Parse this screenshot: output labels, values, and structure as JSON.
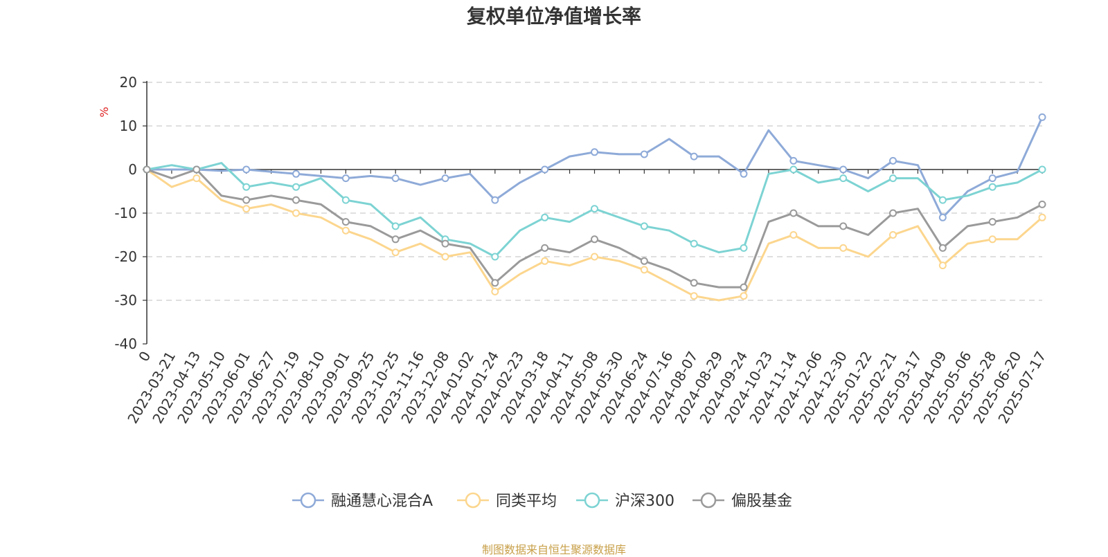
{
  "chart_data": {
    "type": "line",
    "title": "复权单位净值增长率",
    "ylabel": "%",
    "xlabel": "",
    "ylim": [
      -40,
      20
    ],
    "yticks": [
      20,
      10,
      0,
      -10,
      -20,
      -30,
      -40
    ],
    "grid": true,
    "legend_position": "bottom",
    "source_note": "制图数据来自恒生聚源数据库",
    "x_labels": [
      "0",
      "2023-03-21",
      "2023-04-13",
      "2023-05-10",
      "2023-06-01",
      "2023-06-27",
      "2023-07-19",
      "2023-08-10",
      "2023-09-01",
      "2023-09-25",
      "2023-10-25",
      "2023-11-16",
      "2023-12-08",
      "2024-01-02",
      "2024-01-24",
      "2024-02-23",
      "2024-03-18",
      "2024-04-11",
      "2024-05-08",
      "2024-05-30",
      "2024-06-24",
      "2024-07-16",
      "2024-08-07",
      "2024-08-29",
      "2024-09-24",
      "2024-10-23",
      "2024-11-14",
      "2024-12-06",
      "2024-12-30",
      "2025-01-22",
      "2025-02-21",
      "2025-03-17",
      "2025-04-09",
      "2025-05-06",
      "2025-05-28",
      "2025-06-20",
      "2025-07-17"
    ],
    "series": [
      {
        "name": "融通慧心混合A",
        "color": "#8eaad8",
        "values": [
          0,
          0,
          0,
          -0.3,
          0,
          -0.5,
          -1,
          -1.5,
          -2,
          -1.5,
          -2,
          -3.5,
          -2,
          -1,
          -7,
          -3,
          0,
          3,
          4,
          3.5,
          3.5,
          7,
          3,
          3,
          -1,
          9,
          2,
          1,
          0,
          -2,
          2,
          1,
          -11,
          -5,
          -2,
          -0.5,
          12
        ]
      },
      {
        "name": "同类平均",
        "color": "#fcd68e",
        "values": [
          0,
          -4,
          -2,
          -7,
          -9,
          -8,
          -10,
          -11,
          -14,
          -16,
          -19,
          -17,
          -20,
          -19,
          -28,
          -24,
          -21,
          -22,
          -20,
          -21,
          -23,
          -26,
          -29,
          -30,
          -29,
          -17,
          -15,
          -18,
          -18,
          -20,
          -15,
          -13,
          -22,
          -17,
          -16,
          -16,
          -11
        ]
      },
      {
        "name": "沪深300",
        "color": "#7dd3d3",
        "values": [
          0,
          1,
          0,
          1.5,
          -4,
          -3,
          -4,
          -2,
          -7,
          -8,
          -13,
          -11,
          -16,
          -17,
          -20,
          -14,
          -11,
          -12,
          -9,
          -11,
          -13,
          -14,
          -17,
          -19,
          -18,
          -1,
          0,
          -3,
          -2,
          -5,
          -2,
          -2,
          -7,
          -6,
          -4,
          -3,
          0
        ]
      },
      {
        "name": "偏股基金",
        "color": "#9a9a9a",
        "values": [
          0,
          -2,
          0,
          -6,
          -7,
          -6,
          -7,
          -8,
          -12,
          -13,
          -16,
          -14,
          -17,
          -18,
          -26,
          -21,
          -18,
          -19,
          -16,
          -18,
          -21,
          -23,
          -26,
          -27,
          -27,
          -12,
          -10,
          -13,
          -13,
          -15,
          -10,
          -9,
          -18,
          -13,
          -12,
          -11,
          -8
        ]
      }
    ]
  }
}
